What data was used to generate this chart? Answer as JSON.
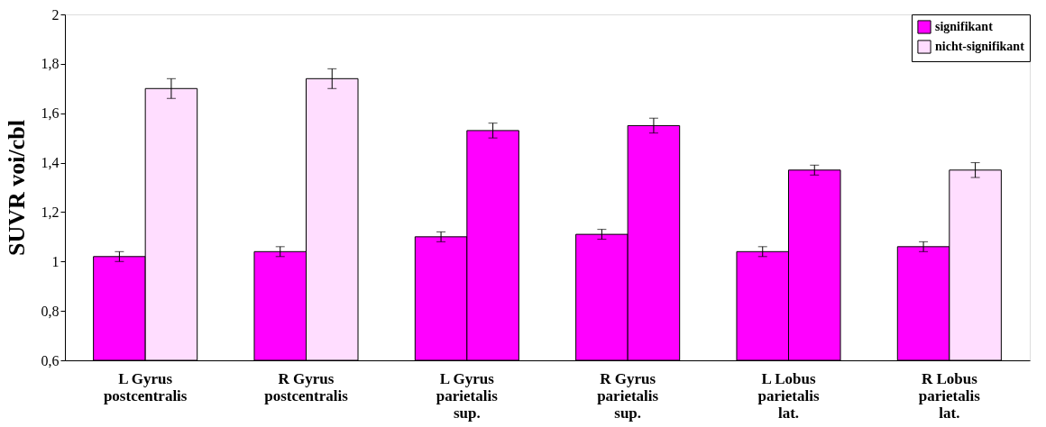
{
  "chart_data": {
    "type": "bar",
    "ylabel": "SUVR voi/cbl",
    "categories": [
      "L Gyrus\npostcentralis",
      "R Gyrus\npostcentralis",
      "L Gyrus\nparietalis\nsup.",
      "R Gyrus\nparietalis\nsup.",
      "L Lobus\nparietalis\nlat.",
      "R Lobus\nparietalis\nlat."
    ],
    "series": [
      {
        "name": "signifikant",
        "color": "#ff00ff",
        "values": [
          1.02,
          1.04,
          1.1,
          1.11,
          1.04,
          1.06
        ],
        "errors": [
          0.02,
          0.02,
          0.02,
          0.02,
          0.02,
          0.02
        ]
      },
      {
        "name": "nicht-signifikant",
        "color": "#ffddff",
        "values": [
          1.7,
          1.74,
          null,
          null,
          null,
          1.37
        ],
        "errors": [
          0.04,
          0.04,
          null,
          null,
          null,
          0.03
        ]
      },
      {
        "color": "#ff00ff",
        "values": [
          null,
          null,
          1.53,
          1.55,
          1.37,
          null
        ],
        "errors": [
          null,
          null,
          0.03,
          0.03,
          0.02,
          null
        ]
      }
    ],
    "ylim": [
      0.6,
      2
    ],
    "yticks": [
      {
        "value": 0.6,
        "label": "0,6"
      },
      {
        "value": 0.8,
        "label": "0,8"
      },
      1,
      {
        "value": 1.2,
        "label": "1,2"
      },
      {
        "value": 1.4,
        "label": "1,4"
      },
      {
        "value": 1.6,
        "label": "1,6"
      },
      {
        "value": 1.8,
        "label": "1,8"
      },
      2
    ],
    "grid": false,
    "legend": "top right"
  }
}
